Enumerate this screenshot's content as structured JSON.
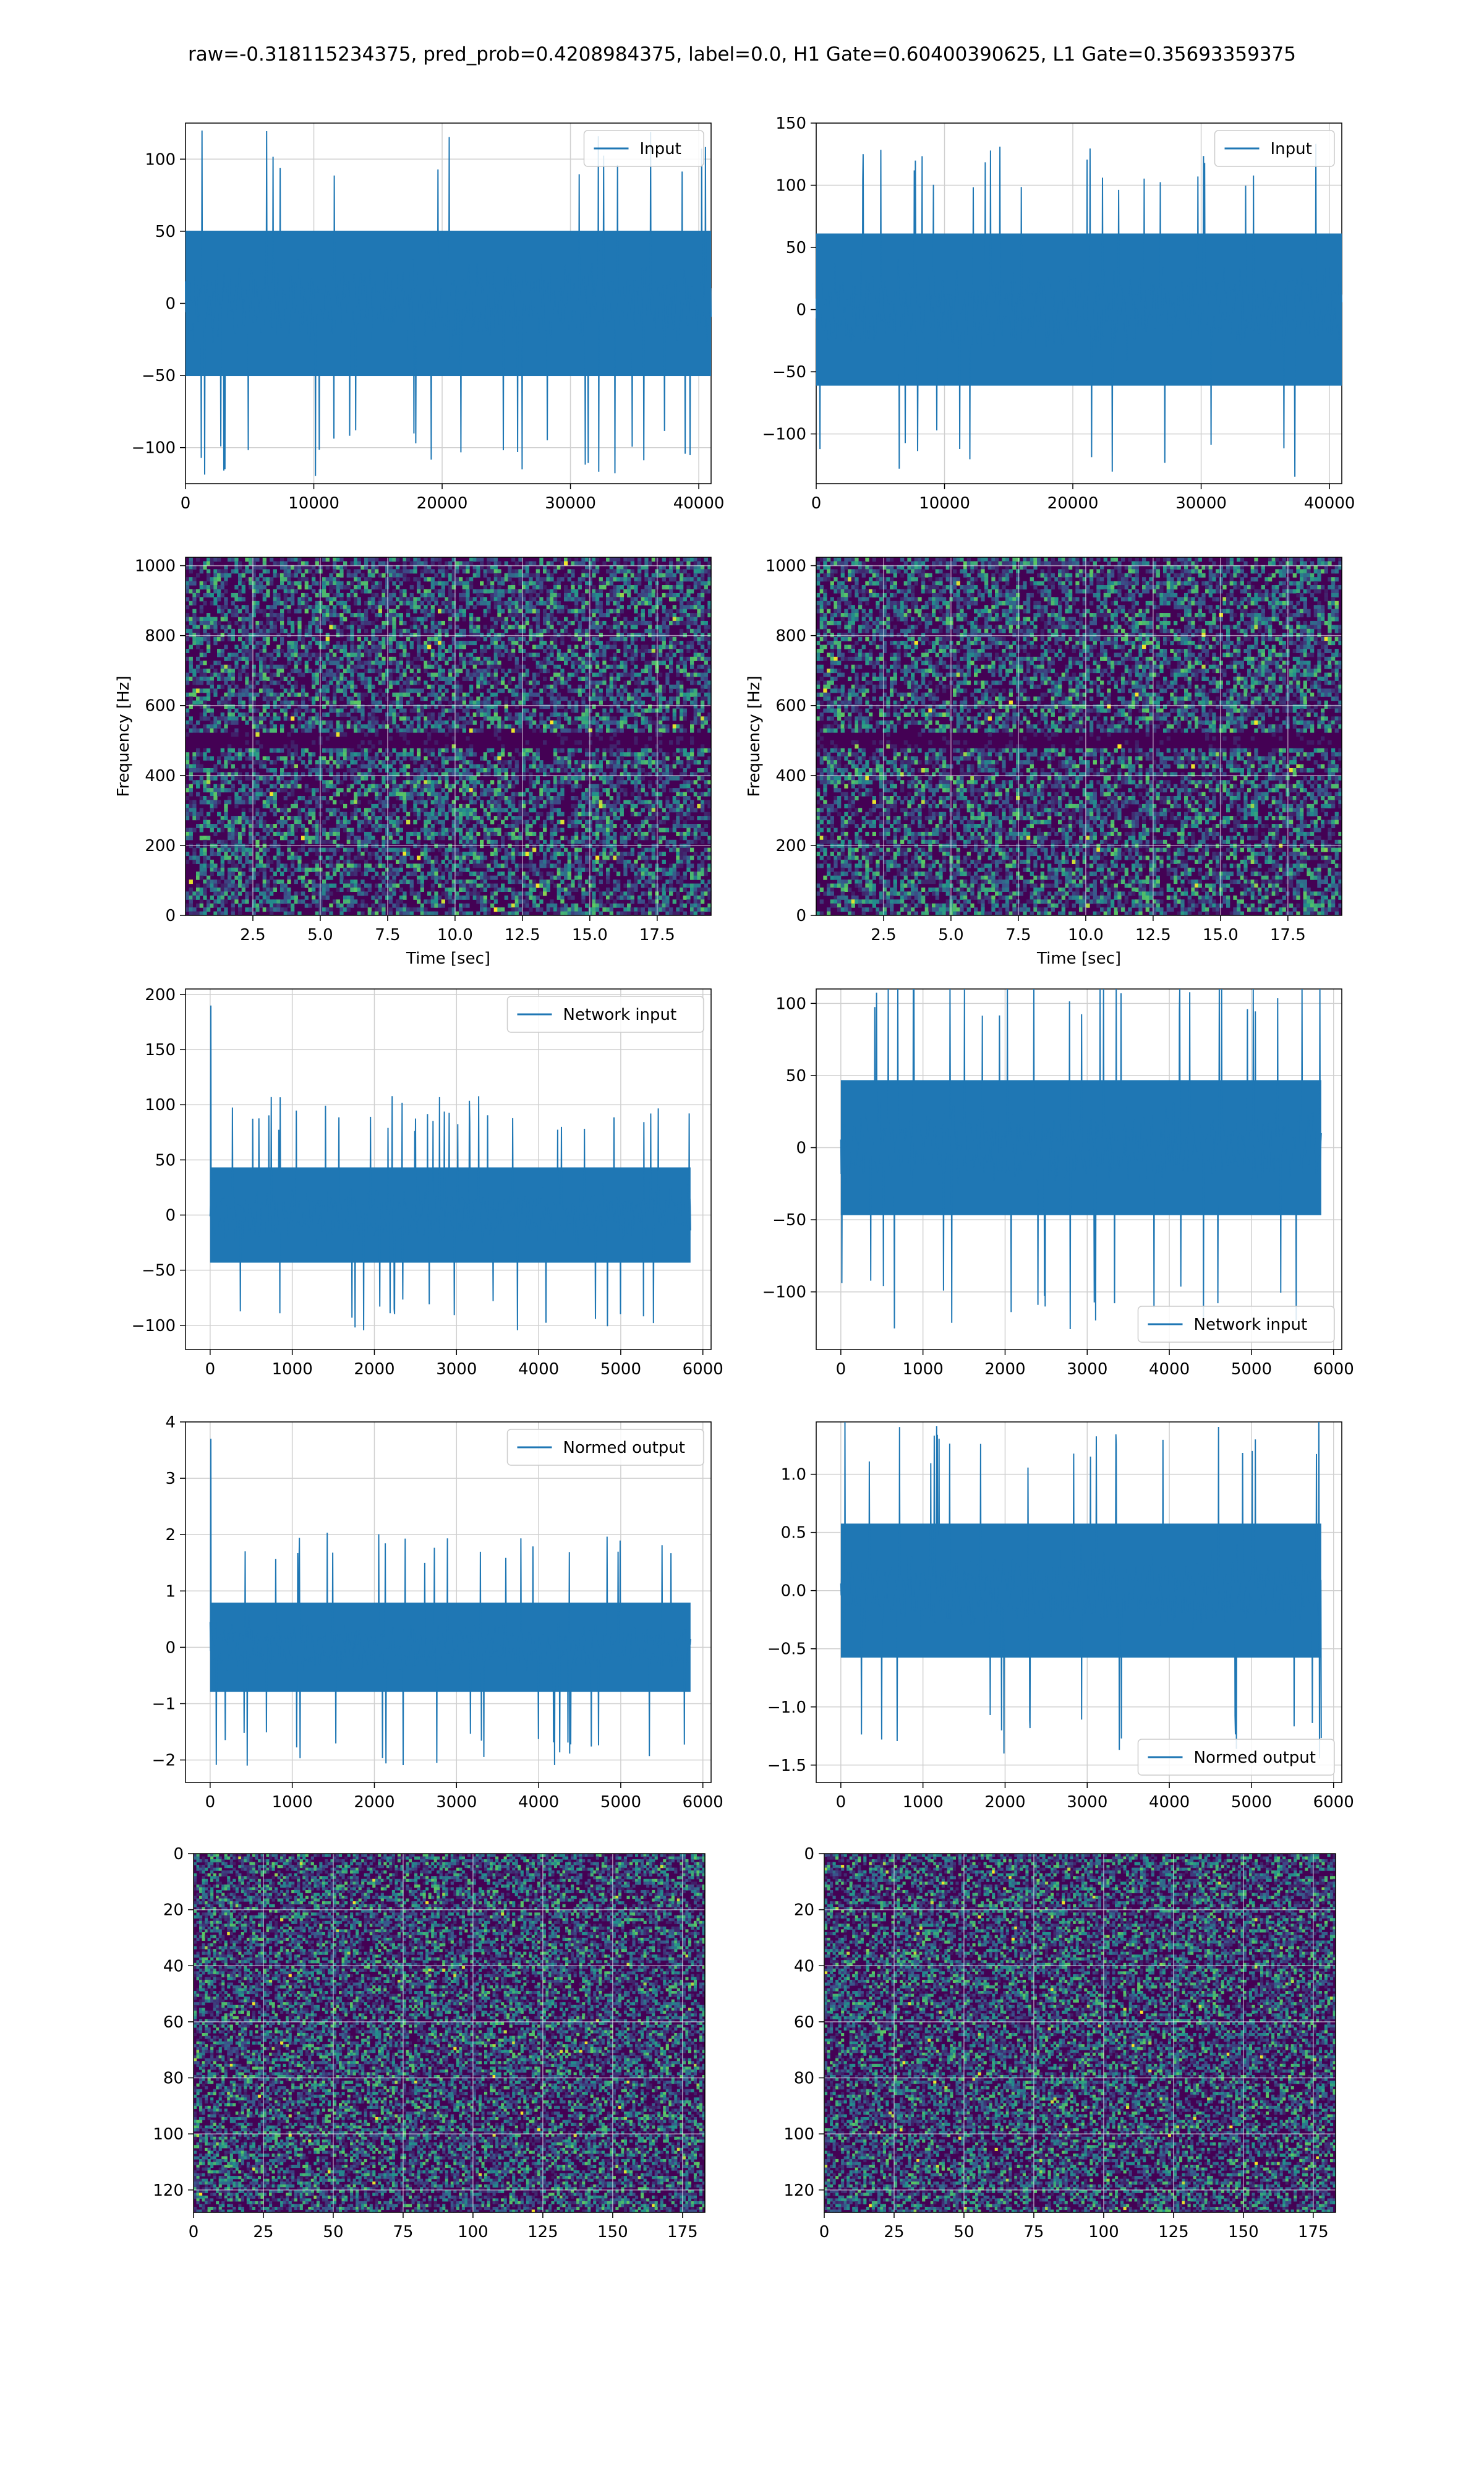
{
  "figure": {
    "title": "raw=-0.318115234375, pred_prob=0.4208984375, label=0.0, H1 Gate=0.60400390625, L1 Gate=0.35693359375"
  },
  "colors": {
    "line": "#1f77b4",
    "grid": "#d0d0d0",
    "viridis_low": "#440154",
    "viridis_mid": "#21918c",
    "viridis_high": "#fde725"
  },
  "chart_data": [
    {
      "id": "h1-input",
      "type": "line",
      "series": [
        {
          "name": "Input",
          "length": 40960,
          "amplitude_typical": 70,
          "amplitude_peak": 120
        }
      ],
      "legend": "top-right",
      "xlim": [
        0,
        40960
      ],
      "ylim": [
        -125,
        125
      ],
      "xticks": [
        "0",
        "10000",
        "20000",
        "30000",
        "40000"
      ],
      "yticks": [
        "100",
        "50",
        "0",
        "−50",
        "−100"
      ],
      "xlabel": "",
      "ylabel": "",
      "grid": true
    },
    {
      "id": "l1-input",
      "type": "line",
      "series": [
        {
          "name": "Input",
          "length": 40960,
          "amplitude_typical": 85,
          "amplitude_peak": 135
        }
      ],
      "legend": "top-right",
      "xlim": [
        0,
        40960
      ],
      "ylim": [
        -140,
        150
      ],
      "xticks": [
        "0",
        "10000",
        "20000",
        "30000",
        "40000"
      ],
      "yticks": [
        "150",
        "100",
        "50",
        "0",
        "−50",
        "−100"
      ],
      "xlabel": "",
      "ylabel": "",
      "grid": true
    },
    {
      "id": "h1-spectrogram",
      "type": "heatmap",
      "xlabel": "Time [sec]",
      "ylabel": "Frequency [Hz]",
      "xlim": [
        0,
        19.5
      ],
      "ylim": [
        0,
        1024
      ],
      "xticks": [
        "2.5",
        "5.0",
        "7.5",
        "10.0",
        "12.5",
        "15.0",
        "17.5"
      ],
      "yticks": [
        "1000",
        "800",
        "600",
        "400",
        "200",
        "0"
      ],
      "colormap": "viridis",
      "dark_band_hz": 500,
      "grid": true
    },
    {
      "id": "l1-spectrogram",
      "type": "heatmap",
      "xlabel": "Time [sec]",
      "ylabel": "Frequency [Hz]",
      "xlim": [
        0,
        19.5
      ],
      "ylim": [
        0,
        1024
      ],
      "xticks": [
        "2.5",
        "5.0",
        "7.5",
        "10.0",
        "12.5",
        "15.0",
        "17.5"
      ],
      "yticks": [
        "1000",
        "800",
        "600",
        "400",
        "200",
        "0"
      ],
      "colormap": "viridis",
      "dark_band_hz": 500,
      "grid": true
    },
    {
      "id": "h1-network-input",
      "type": "line",
      "series": [
        {
          "name": "Network input",
          "length": 5850,
          "amplitude_typical": 60,
          "amplitude_peak": 108,
          "spike_at_start": 190
        }
      ],
      "legend": "top-right",
      "xlim": [
        -300,
        6100
      ],
      "ylim": [
        -122,
        205
      ],
      "xticks": [
        "0",
        "1000",
        "2000",
        "3000",
        "4000",
        "5000",
        "6000"
      ],
      "yticks": [
        "200",
        "150",
        "100",
        "50",
        "0",
        "−50",
        "−100"
      ],
      "xlabel": "",
      "ylabel": "",
      "grid": true
    },
    {
      "id": "l1-network-input",
      "type": "line",
      "series": [
        {
          "name": "Network input",
          "length": 5850,
          "amplitude_typical": 65,
          "amplitude_peak": 128
        }
      ],
      "legend": "bottom-right",
      "xlim": [
        -300,
        6100
      ],
      "ylim": [
        -140,
        110
      ],
      "xticks": [
        "0",
        "1000",
        "2000",
        "3000",
        "4000",
        "5000",
        "6000"
      ],
      "yticks": [
        "100",
        "50",
        "0",
        "−50",
        "−100"
      ],
      "xlabel": "",
      "ylabel": "",
      "grid": true
    },
    {
      "id": "h1-normed-output",
      "type": "line",
      "series": [
        {
          "name": "Normed output",
          "length": 5850,
          "amplitude_typical": 1.1,
          "amplitude_peak": 2.1,
          "spike_at_start": 3.7
        }
      ],
      "legend": "top-right",
      "xlim": [
        -300,
        6100
      ],
      "ylim": [
        -2.4,
        4.0
      ],
      "xticks": [
        "0",
        "1000",
        "2000",
        "3000",
        "4000",
        "5000",
        "6000"
      ],
      "yticks": [
        "4",
        "3",
        "2",
        "1",
        "0",
        "−1",
        "−2"
      ],
      "xlabel": "",
      "ylabel": "",
      "grid": true
    },
    {
      "id": "l1-normed-output",
      "type": "line",
      "series": [
        {
          "name": "Normed output",
          "length": 5850,
          "amplitude_typical": 0.8,
          "amplitude_peak": 1.5
        }
      ],
      "legend": "bottom-right",
      "xlim": [
        -300,
        6100
      ],
      "ylim": [
        -1.65,
        1.45
      ],
      "xticks": [
        "0",
        "1000",
        "2000",
        "3000",
        "4000",
        "5000",
        "6000"
      ],
      "yticks": [
        "1.0",
        "0.5",
        "0.0",
        "−0.5",
        "−1.0",
        "−1.5"
      ],
      "xlabel": "",
      "ylabel": "",
      "grid": true
    },
    {
      "id": "h1-feature-map",
      "type": "heatmap",
      "rows": 128,
      "cols": 183,
      "xlim": [
        0,
        183
      ],
      "ylim": [
        128,
        0
      ],
      "xticks": [
        "0",
        "25",
        "50",
        "75",
        "100",
        "125",
        "150",
        "175"
      ],
      "yticks": [
        "0",
        "20",
        "40",
        "60",
        "80",
        "100",
        "120"
      ],
      "colormap": "viridis",
      "xlabel": "",
      "ylabel": "",
      "grid": true
    },
    {
      "id": "l1-feature-map",
      "type": "heatmap",
      "rows": 128,
      "cols": 183,
      "xlim": [
        0,
        183
      ],
      "ylim": [
        128,
        0
      ],
      "xticks": [
        "0",
        "25",
        "50",
        "75",
        "100",
        "125",
        "150",
        "175"
      ],
      "yticks": [
        "0",
        "20",
        "40",
        "60",
        "80",
        "100",
        "120"
      ],
      "colormap": "viridis",
      "xlabel": "",
      "ylabel": "",
      "grid": true
    }
  ]
}
